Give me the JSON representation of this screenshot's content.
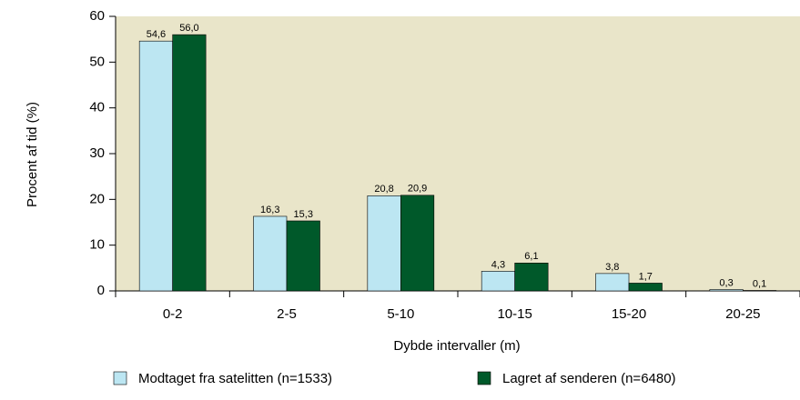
{
  "chart_data": {
    "type": "bar",
    "categories": [
      "0-2",
      "2-5",
      "5-10",
      "10-15",
      "15-20",
      "20-25"
    ],
    "x_label": "Dybde intervaller (m)",
    "y_label": "Procent af tid (%)",
    "series": [
      {
        "name": "Modtaget fra satelitten (n=1533)",
        "color": "#bce6f2",
        "values": [
          54.6,
          16.3,
          20.8,
          4.3,
          3.8,
          0.3
        ],
        "value_labels": [
          "54,6",
          "16,3",
          "20,8",
          "4,3",
          "3,8",
          "0,3"
        ]
      },
      {
        "name": "Lagret af senderen (n=6480)",
        "color": "#00592a",
        "values": [
          56.0,
          15.3,
          20.9,
          6.1,
          1.7,
          0.1
        ],
        "value_labels": [
          "56,0",
          "15,3",
          "20,9",
          "6,1",
          "1,7",
          "0,1"
        ]
      }
    ],
    "ylim": [
      0,
      60
    ],
    "yticks": [
      0,
      10,
      20,
      30,
      40,
      50,
      60
    ],
    "plot_background": "#e9e5c9",
    "legend": "bottom"
  }
}
